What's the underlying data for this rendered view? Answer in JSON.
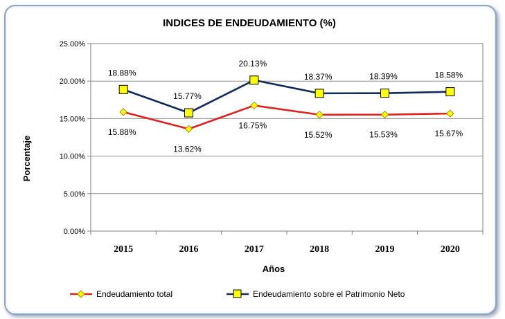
{
  "chart_data": {
    "type": "line",
    "title": "INDICES DE ENDEUDAMIENTO (%)",
    "xlabel": "Años",
    "ylabel": "Porcentaje",
    "categories": [
      "2015",
      "2016",
      "2017",
      "2018",
      "2019",
      "2020"
    ],
    "ylim": [
      0,
      25
    ],
    "yticks": [
      "0.00%",
      "5.00%",
      "10.00%",
      "15.00%",
      "20.00%",
      "25.00%"
    ],
    "grid": true,
    "legend_position": "bottom",
    "series": [
      {
        "name": "Endeudamiento total",
        "values": [
          15.88,
          13.62,
          16.75,
          15.52,
          15.53,
          15.67
        ],
        "labels": [
          "15.88%",
          "13.62%",
          "16.75%",
          "15.52%",
          "15.53%",
          "15.67%"
        ],
        "color": "#e0201b",
        "marker": "diamond",
        "marker_color": "#ffff00"
      },
      {
        "name": "Endeudamiento sobre el Patrimonio Neto",
        "values": [
          18.88,
          15.77,
          20.13,
          18.37,
          18.39,
          18.58
        ],
        "labels": [
          "18.88%",
          "15.77%",
          "20.13%",
          "18.37%",
          "18.39%",
          "18.58%"
        ],
        "color": "#0e2a5c",
        "marker": "square",
        "marker_color": "#ffff00"
      }
    ]
  }
}
